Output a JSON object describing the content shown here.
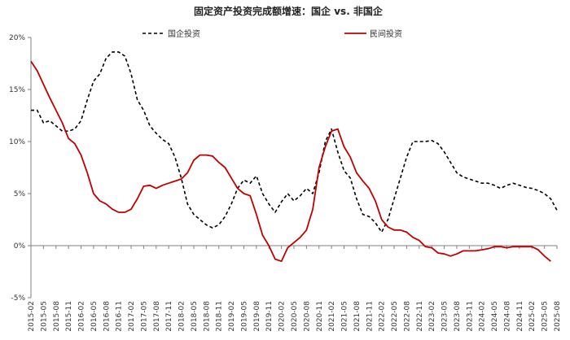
{
  "chart_data": {
    "type": "line",
    "title": "固定资产投资完成额增速：国企 vs. 非国企",
    "xlabel": "",
    "ylabel": "",
    "ylim": [
      -5,
      20
    ],
    "y_ticks": [
      "-5%",
      "0%",
      "5%",
      "10%",
      "15%",
      "20%"
    ],
    "y_tick_values": [
      -5,
      0,
      5,
      10,
      15,
      20
    ],
    "grid": false,
    "legend_position": "top-center",
    "x_labels": [
      "2015-02",
      "2015-05",
      "2015-08",
      "2015-11",
      "2016-02",
      "2016-05",
      "2016-08",
      "2016-11",
      "2017-02",
      "2017-05",
      "2017-08",
      "2017-11",
      "2018-02",
      "2018-05",
      "2018-08",
      "2018-11",
      "2019-02",
      "2019-05",
      "2019-08",
      "2019-11",
      "2020-02",
      "2020-05",
      "2020-08",
      "2020-11",
      "2021-02",
      "2021-05",
      "2021-08",
      "2021-11",
      "2022-02",
      "2022-05",
      "2022-08",
      "2022-11",
      "2023-02",
      "2023-05",
      "2023-08",
      "2023-11",
      "2024-02",
      "2024-05",
      "2024-08",
      "2024-11",
      "2025-02",
      "2025-05",
      "2025-08"
    ],
    "series": [
      {
        "name": "国企投资",
        "color": "#000000",
        "dash": "dashed",
        "points": [
          [
            0,
            13.0
          ],
          [
            0.5,
            13.0
          ],
          [
            1,
            11.8
          ],
          [
            1.5,
            12.0
          ],
          [
            2,
            11.5
          ],
          [
            2.5,
            11.0
          ],
          [
            3,
            11.0
          ],
          [
            3.5,
            11.2
          ],
          [
            4,
            12.0
          ],
          [
            4.5,
            14.0
          ],
          [
            5,
            15.8
          ],
          [
            5.5,
            16.5
          ],
          [
            6,
            18.0
          ],
          [
            6.5,
            18.6
          ],
          [
            7,
            18.6
          ],
          [
            7.5,
            18.2
          ],
          [
            8,
            16.5
          ],
          [
            8.5,
            14.0
          ],
          [
            9,
            13.0
          ],
          [
            9.5,
            11.5
          ],
          [
            10,
            10.8
          ],
          [
            10.5,
            10.2
          ],
          [
            11,
            9.8
          ],
          [
            11.5,
            8.5
          ],
          [
            12,
            6.5
          ],
          [
            12.5,
            4.0
          ],
          [
            13,
            3.0
          ],
          [
            13.5,
            2.5
          ],
          [
            14,
            2.0
          ],
          [
            14.5,
            1.7
          ],
          [
            15,
            2.0
          ],
          [
            15.5,
            2.8
          ],
          [
            16,
            4.0
          ],
          [
            16.5,
            5.5
          ],
          [
            17,
            6.3
          ],
          [
            17.5,
            6.0
          ],
          [
            18,
            6.7
          ],
          [
            18.5,
            5.0
          ],
          [
            19,
            4.0
          ],
          [
            19.5,
            3.2
          ],
          [
            20,
            4.2
          ],
          [
            20.5,
            5.0
          ],
          [
            21,
            4.3
          ],
          [
            21.5,
            4.8
          ],
          [
            22,
            5.5
          ],
          [
            22.5,
            5.0
          ],
          [
            23,
            7.0
          ],
          [
            23.5,
            10.0
          ],
          [
            24,
            11.2
          ],
          [
            24.5,
            9.0
          ],
          [
            25,
            7.2
          ],
          [
            25.5,
            6.5
          ],
          [
            26,
            4.5
          ],
          [
            26.5,
            3.0
          ],
          [
            27,
            2.8
          ],
          [
            27.5,
            2.2
          ],
          [
            28,
            1.3
          ],
          [
            28.5,
            2.5
          ],
          [
            29,
            4.5
          ],
          [
            29.5,
            6.5
          ],
          [
            30,
            8.5
          ],
          [
            30.5,
            10.0
          ],
          [
            31,
            10.0
          ],
          [
            31.5,
            10.0
          ],
          [
            32,
            10.1
          ],
          [
            32.5,
            9.8
          ],
          [
            33,
            9.0
          ],
          [
            33.5,
            8.0
          ],
          [
            34,
            7.0
          ],
          [
            34.5,
            6.6
          ],
          [
            35,
            6.4
          ],
          [
            35.5,
            6.2
          ],
          [
            36,
            6.0
          ],
          [
            36.5,
            6.0
          ],
          [
            37,
            5.8
          ],
          [
            37.5,
            5.5
          ],
          [
            38,
            5.8
          ],
          [
            38.5,
            6.0
          ],
          [
            39,
            5.8
          ],
          [
            39.5,
            5.6
          ],
          [
            40,
            5.5
          ],
          [
            40.5,
            5.3
          ],
          [
            41,
            5.0
          ],
          [
            41.5,
            4.5
          ],
          [
            42,
            3.4
          ]
        ]
      },
      {
        "name": "民间投资",
        "color": "#c00000",
        "dash": "solid",
        "points": [
          [
            0,
            17.7
          ],
          [
            0.5,
            16.8
          ],
          [
            1,
            15.5
          ],
          [
            1.5,
            14.2
          ],
          [
            2,
            13.0
          ],
          [
            2.5,
            11.8
          ],
          [
            3,
            10.3
          ],
          [
            3.5,
            9.8
          ],
          [
            4,
            8.7
          ],
          [
            4.5,
            7.0
          ],
          [
            5,
            5.0
          ],
          [
            5.5,
            4.3
          ],
          [
            6,
            4.0
          ],
          [
            6.5,
            3.5
          ],
          [
            7,
            3.2
          ],
          [
            7.5,
            3.2
          ],
          [
            8,
            3.5
          ],
          [
            8.5,
            4.5
          ],
          [
            9,
            5.7
          ],
          [
            9.5,
            5.8
          ],
          [
            10,
            5.5
          ],
          [
            10.5,
            5.8
          ],
          [
            11,
            6.0
          ],
          [
            11.5,
            6.2
          ],
          [
            12,
            6.4
          ],
          [
            12.5,
            7.0
          ],
          [
            13,
            8.2
          ],
          [
            13.5,
            8.7
          ],
          [
            14,
            8.7
          ],
          [
            14.5,
            8.6
          ],
          [
            15,
            8.0
          ],
          [
            15.5,
            7.5
          ],
          [
            16,
            6.5
          ],
          [
            16.5,
            5.5
          ],
          [
            17,
            5.0
          ],
          [
            17.5,
            4.8
          ],
          [
            18,
            3.0
          ],
          [
            18.5,
            1.0
          ],
          [
            19,
            0.0
          ],
          [
            19.5,
            -1.3
          ],
          [
            20,
            -1.5
          ],
          [
            20.5,
            -0.2
          ],
          [
            21,
            0.3
          ],
          [
            21.5,
            0.8
          ],
          [
            22,
            1.5
          ],
          [
            22.5,
            3.5
          ],
          [
            23,
            7.5
          ],
          [
            23.5,
            9.5
          ],
          [
            24,
            11.0
          ],
          [
            24.5,
            11.2
          ],
          [
            25,
            9.5
          ],
          [
            25.5,
            8.5
          ],
          [
            26,
            7.0
          ],
          [
            26.5,
            6.2
          ],
          [
            27,
            5.5
          ],
          [
            27.5,
            4.3
          ],
          [
            28,
            2.5
          ],
          [
            28.5,
            1.8
          ],
          [
            29,
            1.5
          ],
          [
            29.5,
            1.5
          ],
          [
            30,
            1.3
          ],
          [
            30.5,
            0.8
          ],
          [
            31,
            0.5
          ],
          [
            31.5,
            -0.1
          ],
          [
            32,
            -0.2
          ],
          [
            32.5,
            -0.7
          ],
          [
            33,
            -0.8
          ],
          [
            33.5,
            -1.0
          ],
          [
            34,
            -0.8
          ],
          [
            34.5,
            -0.5
          ],
          [
            35,
            -0.5
          ],
          [
            35.5,
            -0.5
          ],
          [
            36,
            -0.4
          ],
          [
            36.5,
            -0.3
          ],
          [
            37,
            -0.1
          ],
          [
            37.5,
            -0.1
          ],
          [
            38,
            -0.2
          ],
          [
            38.5,
            -0.1
          ],
          [
            39,
            -0.1
          ],
          [
            39.5,
            -0.1
          ],
          [
            40,
            -0.1
          ],
          [
            40.5,
            -0.4
          ],
          [
            41,
            -1.0
          ],
          [
            41.5,
            -1.5
          ]
        ]
      }
    ]
  }
}
